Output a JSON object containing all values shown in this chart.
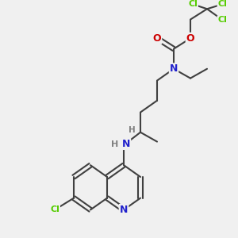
{
  "bg_color": "#f0f0f0",
  "atom_colors": {
    "C": "#404040",
    "N": "#2222cc",
    "O": "#cc0000",
    "Cl": "#55cc00",
    "H": "#808080"
  },
  "bond_color": "#404040",
  "bond_width": 1.5,
  "fig_size": [
    3.0,
    3.0
  ],
  "dpi": 100,
  "xlim": [
    0,
    10
  ],
  "ylim": [
    0,
    10
  ]
}
